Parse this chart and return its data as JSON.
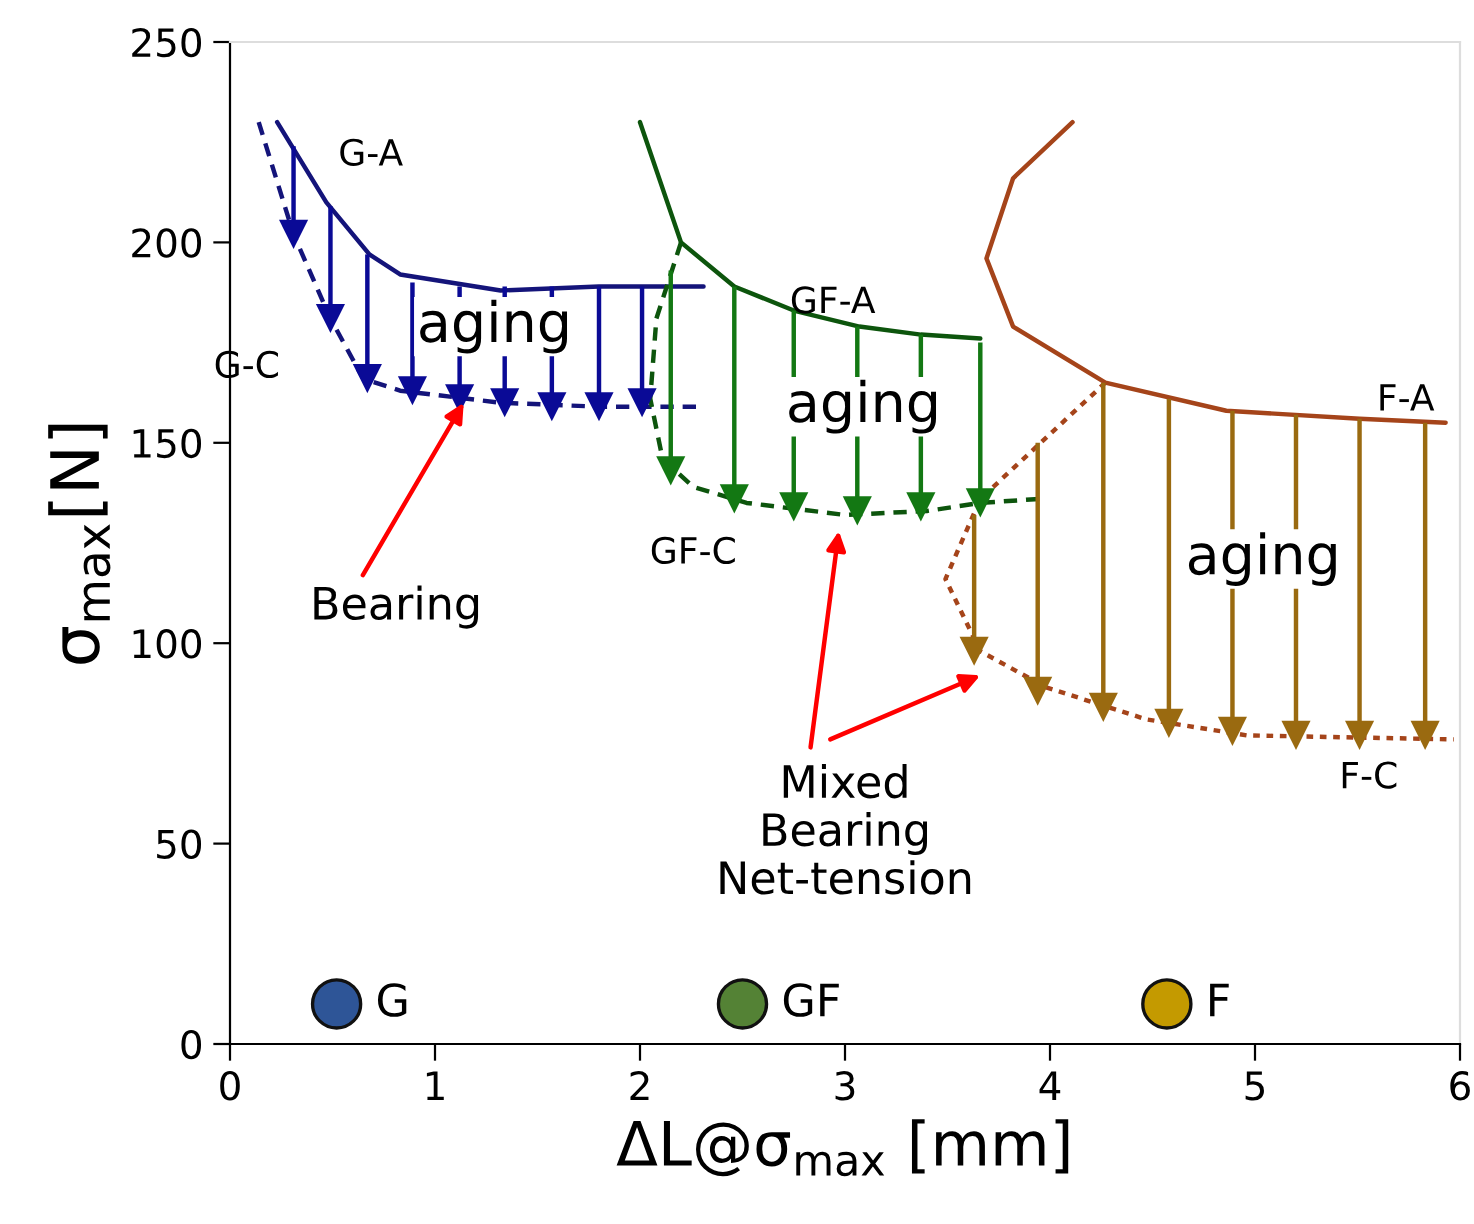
{
  "chart_data": {
    "type": "line",
    "xlabel": "ΔL@σ$_{max}$ [mm]",
    "ylabel": "σ$_{max}$[N]",
    "xlim": [
      0,
      6
    ],
    "xticks": [
      0,
      1,
      2,
      3,
      4,
      5,
      6
    ],
    "ylim": [
      0,
      250
    ],
    "yticks": [
      0,
      50,
      100,
      150,
      200,
      250
    ],
    "grid": false,
    "legend": false,
    "series": [
      {
        "name": "G-A",
        "color": "#14147a",
        "line_style": "solid",
        "marker": "none",
        "x": [
          0.23,
          0.47,
          0.68,
          0.83,
          1.32,
          1.8,
          2.31
        ],
        "values": [
          230,
          210,
          197,
          192,
          188,
          189,
          189
        ]
      },
      {
        "name": "G-C",
        "color": "#14147a",
        "line_style": "dashed",
        "marker": "none",
        "x": [
          0.14,
          0.31,
          0.49,
          0.65,
          0.83,
          1.32,
          1.8,
          2.29
        ],
        "values": [
          230,
          202,
          181,
          166,
          163,
          160,
          159,
          159
        ]
      },
      {
        "type": "scatter",
        "color": "#0a0a96",
        "marker": "triangle",
        "x": [
          0.31,
          0.49,
          0.67,
          0.89,
          1.12,
          1.34,
          1.57,
          1.8,
          2.01
        ],
        "values": [
          202,
          181,
          166,
          163,
          161,
          160,
          159,
          159,
          160
        ],
        "errors": [
          [
            202,
            224
          ],
          [
            181,
            209
          ],
          [
            166,
            197
          ],
          [
            163,
            190
          ],
          [
            161,
            189
          ],
          [
            160,
            189
          ],
          [
            159,
            189
          ],
          [
            159,
            189
          ],
          [
            160,
            189
          ]
        ]
      },
      {
        "name": "GF-A",
        "color": "#0d550d",
        "line_style": "solid",
        "marker": "none",
        "x": [
          2.0,
          2.2,
          2.46,
          2.75,
          3.07,
          3.37,
          3.66
        ],
        "values": [
          230,
          200,
          189,
          183,
          179,
          177,
          176
        ]
      },
      {
        "name": "GF-C",
        "color": "#0d550d",
        "line_style": "dashed",
        "marker": "none",
        "x": [
          2.2,
          2.08,
          2.05,
          2.11,
          2.26,
          2.52,
          3.0,
          3.4,
          3.66,
          3.95
        ],
        "values": [
          200,
          181,
          161,
          146,
          139,
          135,
          132,
          133,
          135,
          136
        ]
      },
      {
        "type": "scatter",
        "color": "#137813",
        "marker": "triangle",
        "x": [
          2.15,
          2.46,
          2.75,
          3.06,
          3.37,
          3.66
        ],
        "values": [
          143,
          136,
          134,
          133,
          134,
          135
        ],
        "errors": [
          [
            143,
            193
          ],
          [
            136,
            189
          ],
          [
            134,
            183
          ],
          [
            133,
            179
          ],
          [
            134,
            177
          ],
          [
            135,
            175
          ]
        ]
      },
      {
        "name": "F-A",
        "color": "#a5441a",
        "line_style": "solid",
        "marker": "none",
        "x": [
          4.11,
          3.82,
          3.69,
          3.82,
          4.27,
          4.86,
          5.51,
          5.93
        ],
        "values": [
          230,
          216,
          196,
          179,
          165,
          158,
          156,
          155
        ]
      },
      {
        "name": "F-C",
        "color": "#a5441a",
        "line_style": "dotted",
        "marker": "none",
        "x": [
          4.27,
          3.66,
          3.49,
          3.66,
          3.98,
          4.47,
          4.96,
          5.97
        ],
        "values": [
          165,
          136,
          116,
          98,
          89,
          81,
          77,
          76
        ]
      },
      {
        "type": "scatter",
        "color": "#9a6a10",
        "marker": "triangle",
        "x": [
          3.63,
          3.94,
          4.26,
          4.58,
          4.89,
          5.2,
          5.51,
          5.83
        ],
        "values": [
          98,
          88,
          84,
          80,
          78,
          77,
          77,
          77
        ],
        "errors": [
          [
            98,
            132
          ],
          [
            88,
            150
          ],
          [
            84,
            165
          ],
          [
            80,
            161
          ],
          [
            78,
            158
          ],
          [
            77,
            157
          ],
          [
            77,
            156
          ],
          [
            77,
            155
          ]
        ]
      },
      {
        "name": "G",
        "type": "scatter",
        "color": "#2e5597",
        "marker": "circle",
        "x": [
          0.52
        ],
        "values": [
          10
        ]
      },
      {
        "name": "GF",
        "type": "scatter",
        "color": "#548235",
        "marker": "circle",
        "x": [
          2.5
        ],
        "values": [
          10
        ]
      },
      {
        "name": "F",
        "type": "scatter",
        "color": "#c49a00",
        "marker": "circle",
        "x": [
          4.57
        ],
        "values": [
          10
        ]
      }
    ],
    "annotations": [
      "aging",
      "aging",
      "aging",
      {
        "text": "Bearing",
        "x": 1.14,
        "y": 160
      },
      "Mixed\nBearing\nNet-tension"
    ]
  }
}
